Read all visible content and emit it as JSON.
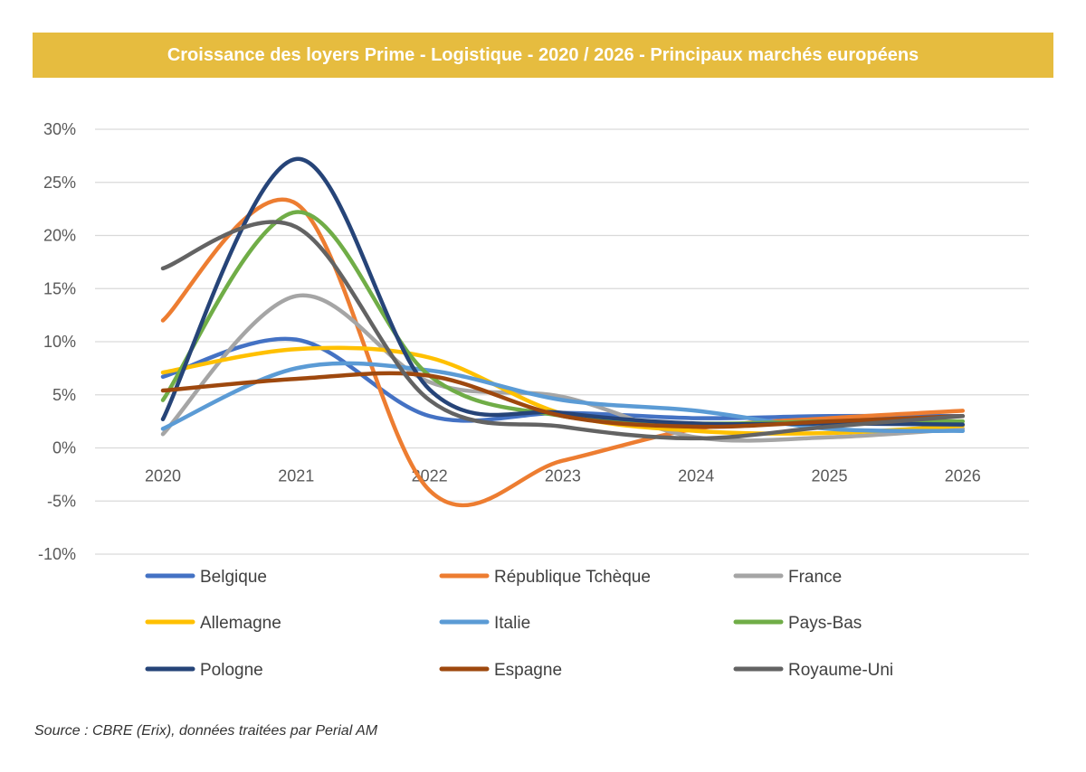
{
  "header": {
    "title": "Croissance des loyers Prime - Logistique - 2020 / 2026 - Principaux marchés européens",
    "background": "#E6BC3F"
  },
  "footer": {
    "source": "Source : CBRE (Erix), données traitées par Perial AM"
  },
  "chart_data": {
    "type": "line",
    "smooth": true,
    "x": [
      "2020",
      "2021",
      "2022",
      "2023",
      "2024",
      "2025",
      "2026"
    ],
    "ylim": [
      -0.1,
      0.3
    ],
    "yticks": [
      -0.1,
      -0.05,
      0,
      0.05,
      0.1,
      0.15,
      0.2,
      0.25,
      0.3
    ],
    "ytick_labels": [
      "-10%",
      "-5%",
      "0%",
      "5%",
      "10%",
      "15%",
      "20%",
      "25%",
      "30%"
    ],
    "grid": true,
    "legend_position": "bottom",
    "series": [
      {
        "name": "Belgique",
        "color": "#4472C4",
        "values": [
          0.067,
          0.102,
          0.03,
          0.033,
          0.028,
          0.03,
          0.03
        ]
      },
      {
        "name": "République Tchèque",
        "color": "#ED7D31",
        "values": [
          0.12,
          0.23,
          -0.04,
          -0.012,
          0.018,
          0.028,
          0.035
        ]
      },
      {
        "name": "France",
        "color": "#A5A5A5",
        "values": [
          0.013,
          0.143,
          0.062,
          0.048,
          0.01,
          0.01,
          0.018
        ]
      },
      {
        "name": "Allemagne",
        "color": "#FFC000",
        "values": [
          0.071,
          0.093,
          0.085,
          0.032,
          0.016,
          0.014,
          0.021
        ]
      },
      {
        "name": "Italie",
        "color": "#5B9BD5",
        "values": [
          0.018,
          0.075,
          0.073,
          0.045,
          0.035,
          0.018,
          0.016
        ]
      },
      {
        "name": "Pays-Bas",
        "color": "#70AD47",
        "values": [
          0.045,
          0.222,
          0.068,
          0.03,
          0.023,
          0.025,
          0.025
        ]
      },
      {
        "name": "Pologne",
        "color": "#264478",
        "values": [
          0.027,
          0.272,
          0.055,
          0.033,
          0.023,
          0.023,
          0.022
        ]
      },
      {
        "name": "Espagne",
        "color": "#9E480E",
        "values": [
          0.054,
          0.065,
          0.068,
          0.03,
          0.02,
          0.025,
          0.03
        ]
      },
      {
        "name": "Royaume-Uni",
        "color": "#636363",
        "values": [
          0.169,
          0.208,
          0.045,
          0.02,
          0.009,
          0.02,
          0.03
        ]
      }
    ]
  }
}
